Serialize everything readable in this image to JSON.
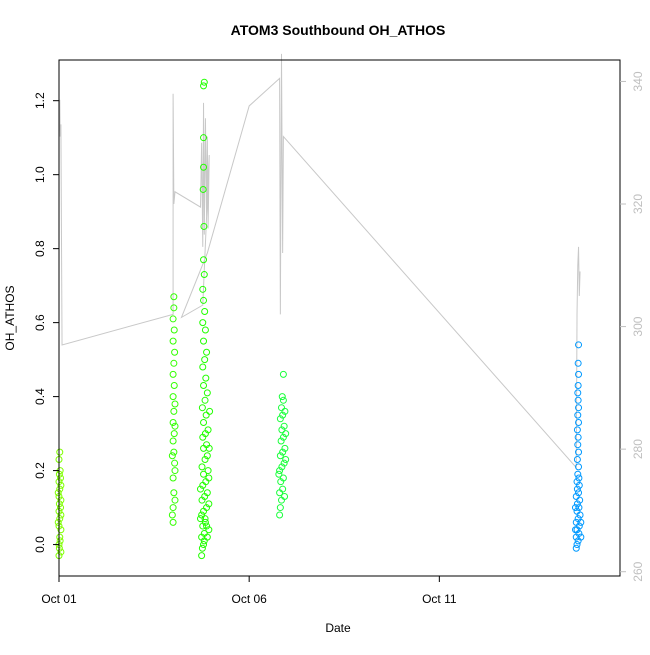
{
  "chart_data": {
    "type": "scatter",
    "title": "ATOM3 Southbound OH_ATHOS",
    "xlabel": "Date",
    "ylabel": "OH_ATHOS",
    "xlim": [
      0.0,
      14.75
    ],
    "ylim": [
      -0.085,
      1.31
    ],
    "x_ticks": [
      {
        "value": 0,
        "label": "Oct 01"
      },
      {
        "value": 5,
        "label": "Oct 06"
      },
      {
        "value": 10,
        "label": "Oct 11"
      }
    ],
    "y_ticks": [
      0.0,
      0.2,
      0.4,
      0.6,
      0.8,
      1.0,
      1.2
    ],
    "y2_ticks": [
      260,
      280,
      300,
      320,
      340
    ],
    "y2lim": [
      259.3,
      343.5
    ],
    "grid": false,
    "point_marker": "open circle",
    "series": [
      {
        "color": "#7FFF00",
        "points": [
          [
            0.0,
            -0.03
          ],
          [
            0.0,
            0.0
          ],
          [
            0.02,
            0.02
          ],
          [
            0.0,
            0.05
          ],
          [
            0.02,
            0.07
          ],
          [
            0.0,
            0.09
          ],
          [
            0.01,
            0.11
          ],
          [
            0.0,
            0.13
          ],
          [
            0.02,
            0.15
          ],
          [
            0.0,
            0.17
          ],
          [
            0.01,
            0.19
          ],
          [
            0.03,
            0.2
          ],
          [
            0.0,
            0.23
          ],
          [
            0.02,
            0.25
          ],
          [
            0.05,
            -0.02
          ],
          [
            0.05,
            0.04
          ],
          [
            0.05,
            0.08
          ],
          [
            0.05,
            0.12
          ],
          [
            0.05,
            0.16
          ],
          [
            -0.02,
            0.06
          ],
          [
            -0.02,
            0.14
          ],
          [
            0.04,
            0.1
          ],
          [
            0.03,
            0.01
          ],
          [
            0.01,
            -0.01
          ],
          [
            0.04,
            0.18
          ]
        ]
      },
      {
        "color": "#33FF00",
        "points": [
          [
            3.0,
            0.06
          ],
          [
            3.0,
            0.1
          ],
          [
            3.02,
            0.14
          ],
          [
            3.0,
            0.18
          ],
          [
            3.04,
            0.22
          ],
          [
            3.02,
            0.25
          ],
          [
            3.0,
            0.28
          ],
          [
            3.03,
            0.3
          ],
          [
            3.0,
            0.33
          ],
          [
            3.02,
            0.36
          ],
          [
            3.05,
            0.38
          ],
          [
            3.0,
            0.4
          ],
          [
            3.03,
            0.43
          ],
          [
            3.0,
            0.46
          ],
          [
            3.02,
            0.49
          ],
          [
            3.04,
            0.52
          ],
          [
            3.0,
            0.55
          ],
          [
            3.03,
            0.58
          ],
          [
            3.0,
            0.61
          ],
          [
            3.02,
            0.64
          ],
          [
            3.02,
            0.67
          ],
          [
            3.05,
            0.2
          ],
          [
            3.05,
            0.12
          ],
          [
            3.05,
            0.32
          ],
          [
            2.98,
            0.08
          ],
          [
            2.98,
            0.24
          ]
        ]
      },
      {
        "color": "#22FF00",
        "points": [
          [
            3.75,
            -0.03
          ],
          [
            3.77,
            -0.01
          ],
          [
            3.8,
            0.0
          ],
          [
            3.75,
            0.02
          ],
          [
            3.82,
            0.03
          ],
          [
            3.78,
            0.05
          ],
          [
            3.85,
            0.06
          ],
          [
            3.75,
            0.08
          ],
          [
            3.8,
            0.09
          ],
          [
            3.88,
            0.1
          ],
          [
            3.76,
            0.12
          ],
          [
            3.83,
            0.13
          ],
          [
            3.9,
            0.14
          ],
          [
            3.78,
            0.16
          ],
          [
            3.86,
            0.17
          ],
          [
            3.8,
            0.19
          ],
          [
            3.92,
            0.2
          ],
          [
            3.76,
            0.21
          ],
          [
            3.84,
            0.23
          ],
          [
            3.9,
            0.24
          ],
          [
            3.8,
            0.26
          ],
          [
            3.88,
            0.27
          ],
          [
            3.78,
            0.29
          ],
          [
            3.85,
            0.3
          ],
          [
            3.92,
            0.31
          ],
          [
            3.8,
            0.33
          ],
          [
            3.87,
            0.35
          ],
          [
            3.77,
            0.37
          ],
          [
            3.84,
            0.39
          ],
          [
            3.9,
            0.41
          ],
          [
            3.8,
            0.43
          ],
          [
            3.86,
            0.45
          ],
          [
            3.78,
            0.48
          ],
          [
            3.83,
            0.5
          ],
          [
            3.88,
            0.52
          ],
          [
            3.8,
            0.55
          ],
          [
            3.85,
            0.58
          ],
          [
            3.78,
            0.6
          ],
          [
            3.83,
            0.63
          ],
          [
            3.8,
            0.66
          ],
          [
            3.78,
            0.69
          ],
          [
            3.82,
            0.73
          ],
          [
            3.8,
            0.77
          ],
          [
            3.81,
            0.86
          ],
          [
            3.79,
            0.96
          ],
          [
            3.8,
            1.02
          ],
          [
            3.8,
            1.1
          ],
          [
            3.8,
            1.24
          ],
          [
            3.82,
            1.25
          ],
          [
            3.94,
            0.04
          ],
          [
            3.94,
            0.11
          ],
          [
            3.94,
            0.18
          ],
          [
            3.72,
            0.07
          ],
          [
            3.72,
            0.15
          ],
          [
            3.95,
            0.26
          ],
          [
            3.96,
            0.36
          ],
          [
            3.82,
            0.01
          ],
          [
            3.9,
            0.02
          ],
          [
            3.84,
            0.07
          ],
          [
            3.88,
            0.05
          ]
        ]
      },
      {
        "color": "#19FF3B",
        "points": [
          [
            5.8,
            0.08
          ],
          [
            5.82,
            0.1
          ],
          [
            5.85,
            0.12
          ],
          [
            5.8,
            0.14
          ],
          [
            5.88,
            0.15
          ],
          [
            5.83,
            0.17
          ],
          [
            5.9,
            0.18
          ],
          [
            5.8,
            0.2
          ],
          [
            5.86,
            0.21
          ],
          [
            5.92,
            0.22
          ],
          [
            5.82,
            0.24
          ],
          [
            5.88,
            0.25
          ],
          [
            5.94,
            0.26
          ],
          [
            5.84,
            0.28
          ],
          [
            5.9,
            0.29
          ],
          [
            5.86,
            0.31
          ],
          [
            5.92,
            0.32
          ],
          [
            5.82,
            0.34
          ],
          [
            5.88,
            0.35
          ],
          [
            5.85,
            0.37
          ],
          [
            5.9,
            0.39
          ],
          [
            5.87,
            0.4
          ],
          [
            5.9,
            0.46
          ],
          [
            5.96,
            0.23
          ],
          [
            5.96,
            0.3
          ],
          [
            5.78,
            0.19
          ],
          [
            5.93,
            0.13
          ],
          [
            5.94,
            0.36
          ]
        ]
      },
      {
        "color": "#0099FF",
        "points": [
          [
            13.6,
            -0.01
          ],
          [
            13.62,
            0.0
          ],
          [
            13.65,
            0.01
          ],
          [
            13.6,
            0.02
          ],
          [
            13.67,
            0.03
          ],
          [
            13.62,
            0.04
          ],
          [
            13.68,
            0.05
          ],
          [
            13.6,
            0.06
          ],
          [
            13.65,
            0.07
          ],
          [
            13.7,
            0.08
          ],
          [
            13.62,
            0.09
          ],
          [
            13.67,
            0.1
          ],
          [
            13.63,
            0.11
          ],
          [
            13.69,
            0.12
          ],
          [
            13.6,
            0.13
          ],
          [
            13.66,
            0.14
          ],
          [
            13.63,
            0.15
          ],
          [
            13.68,
            0.16
          ],
          [
            13.62,
            0.17
          ],
          [
            13.67,
            0.18
          ],
          [
            13.64,
            0.19
          ],
          [
            13.66,
            0.21
          ],
          [
            13.63,
            0.23
          ],
          [
            13.66,
            0.25
          ],
          [
            13.64,
            0.27
          ],
          [
            13.65,
            0.29
          ],
          [
            13.63,
            0.31
          ],
          [
            13.66,
            0.33
          ],
          [
            13.64,
            0.35
          ],
          [
            13.66,
            0.37
          ],
          [
            13.65,
            0.39
          ],
          [
            13.64,
            0.41
          ],
          [
            13.65,
            0.43
          ],
          [
            13.66,
            0.46
          ],
          [
            13.65,
            0.49
          ],
          [
            13.66,
            0.54
          ],
          [
            13.72,
            0.02
          ],
          [
            13.72,
            0.06
          ],
          [
            13.58,
            0.04
          ],
          [
            13.58,
            0.1
          ]
        ]
      }
    ],
    "secondary_line": {
      "axis": "right",
      "color": "#c8c8c8",
      "points": [
        [
          0.0,
          300.5
        ],
        [
          0.0,
          336.0
        ],
        [
          0.01,
          332.0
        ],
        [
          0.02,
          337.0
        ],
        [
          0.03,
          331.0
        ],
        [
          0.05,
          333.0
        ],
        [
          0.08,
          297.0
        ],
        [
          3.0,
          302.0
        ],
        [
          3.0,
          338.0
        ],
        [
          3.02,
          320.0
        ],
        [
          3.05,
          322.0
        ],
        [
          3.72,
          319.5
        ],
        [
          3.75,
          330.0
        ],
        [
          3.78,
          313.0
        ],
        [
          3.8,
          336.5
        ],
        [
          3.82,
          315.0
        ],
        [
          3.85,
          334.0
        ],
        [
          3.88,
          318.0
        ],
        [
          3.9,
          331.0
        ],
        [
          3.92,
          316.0
        ],
        [
          3.95,
          328.0
        ],
        [
          3.78,
          303.5
        ],
        [
          3.22,
          301.5
        ],
        [
          3.9,
          312.0
        ],
        [
          5.0,
          336.0
        ],
        [
          5.8,
          340.5
        ],
        [
          5.82,
          302.0
        ],
        [
          5.85,
          344.5
        ],
        [
          5.88,
          312.0
        ],
        [
          5.9,
          331.0
        ],
        [
          13.6,
          277.0
        ],
        [
          13.62,
          302.0
        ],
        [
          13.64,
          310.0
        ],
        [
          13.66,
          313.0
        ],
        [
          13.68,
          305.0
        ],
        [
          13.7,
          309.0
        ]
      ]
    }
  }
}
